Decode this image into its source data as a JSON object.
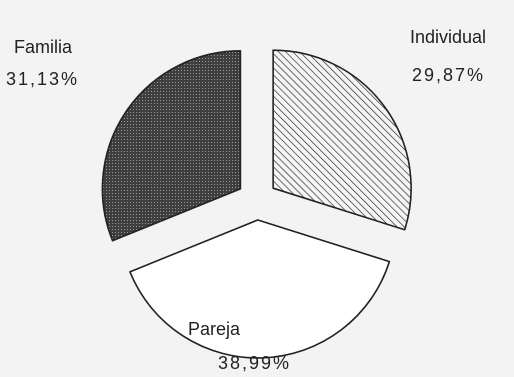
{
  "chart_data": {
    "type": "pie",
    "exploded": true,
    "slices": [
      {
        "label": "Individual",
        "value_text": "29,87%",
        "value": 29.87,
        "fill": "hatch"
      },
      {
        "label": "Pareja",
        "value_text": "38,99%",
        "value": 38.99,
        "fill": "none"
      },
      {
        "label": "Familia",
        "value_text": "31,13%",
        "value": 31.13,
        "fill": "dark-stipple"
      }
    ],
    "colors": {
      "background": "#f3f3f3",
      "stroke": "#222222",
      "dark_fill": "#4a4a4a"
    }
  }
}
